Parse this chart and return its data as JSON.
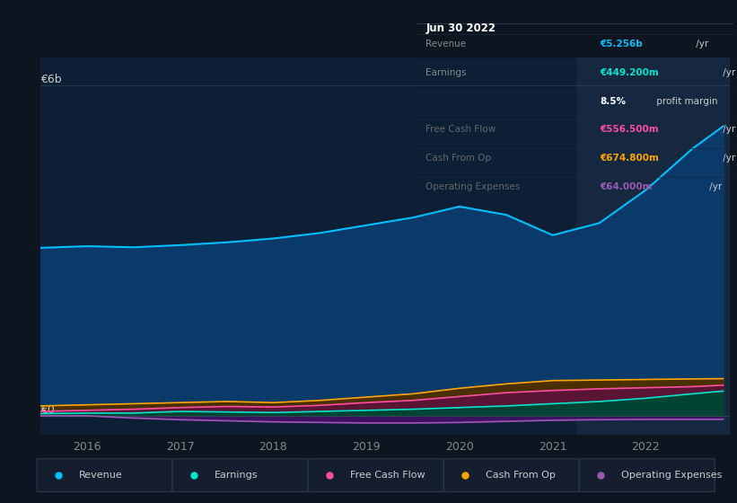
{
  "bg_color": "#0d1520",
  "plot_bg_color": "#0d1f35",
  "years_x": [
    2015.5,
    2016.0,
    2016.5,
    2017.0,
    2017.5,
    2018.0,
    2018.5,
    2019.0,
    2019.5,
    2020.0,
    2020.5,
    2021.0,
    2021.5,
    2022.0,
    2022.5,
    2022.83
  ],
  "revenue": [
    3.05,
    3.08,
    3.06,
    3.1,
    3.15,
    3.22,
    3.32,
    3.46,
    3.6,
    3.8,
    3.65,
    3.28,
    3.5,
    4.1,
    4.85,
    5.256
  ],
  "earnings": [
    0.04,
    0.05,
    0.05,
    0.08,
    0.07,
    0.06,
    0.08,
    0.1,
    0.12,
    0.15,
    0.18,
    0.22,
    0.26,
    0.32,
    0.4,
    0.449
  ],
  "free_cash_flow": [
    0.08,
    0.1,
    0.12,
    0.15,
    0.17,
    0.16,
    0.19,
    0.24,
    0.28,
    0.35,
    0.42,
    0.46,
    0.49,
    0.51,
    0.53,
    0.5565
  ],
  "cash_from_op": [
    0.18,
    0.2,
    0.22,
    0.24,
    0.26,
    0.24,
    0.28,
    0.34,
    0.4,
    0.5,
    0.58,
    0.64,
    0.65,
    0.66,
    0.67,
    0.6748
  ],
  "operating_expenses": [
    0.0,
    0.0,
    -0.04,
    -0.07,
    -0.09,
    -0.11,
    -0.12,
    -0.13,
    -0.13,
    -0.12,
    -0.1,
    -0.08,
    -0.07,
    -0.065,
    -0.064,
    -0.064
  ],
  "revenue_color": "#00bfff",
  "earnings_color": "#00e5cc",
  "free_cash_flow_color": "#ff4da6",
  "cash_from_op_color": "#ffa500",
  "operating_expenses_color": "#9b59b6",
  "revenue_fill": "#0a3a6a",
  "earnings_fill": "#004433",
  "free_cash_flow_fill": "#5a1535",
  "cash_from_op_fill": "#4a3000",
  "opex_fill": "#3d1060",
  "y_label_6b": "€6b",
  "y_label_0": "€0",
  "xlim": [
    2015.5,
    2022.9
  ],
  "ylim": [
    -0.35,
    6.5
  ],
  "highlight_start": 2021.25,
  "highlight_end": 2022.9,
  "info_box_title": "Jun 30 2022",
  "info_rows": [
    {
      "label": "Revenue",
      "value": "€5.256b",
      "unit": " /yr",
      "val_color": "#00bfff",
      "label_color": "#888888"
    },
    {
      "label": "Earnings",
      "value": "€449.200m",
      "unit": " /yr",
      "val_color": "#00e5cc",
      "label_color": "#888888"
    },
    {
      "label": "",
      "value": "8.5%",
      "unit": " profit margin",
      "val_color": "#ffffff",
      "label_color": "#888888"
    },
    {
      "label": "Free Cash Flow",
      "value": "€556.500m",
      "unit": " /yr",
      "val_color": "#ff4da6",
      "label_color": "#666666"
    },
    {
      "label": "Cash From Op",
      "value": "€674.800m",
      "unit": " /yr",
      "val_color": "#ffa500",
      "label_color": "#666666"
    },
    {
      "label": "Operating Expenses",
      "value": "€64.000m",
      "unit": " /yr",
      "val_color": "#9b59b6",
      "label_color": "#666666"
    }
  ],
  "legend_items": [
    {
      "label": "Revenue",
      "color": "#00bfff"
    },
    {
      "label": "Earnings",
      "color": "#00e5cc"
    },
    {
      "label": "Free Cash Flow",
      "color": "#ff4da6"
    },
    {
      "label": "Cash From Op",
      "color": "#ffa500"
    },
    {
      "label": "Operating Expenses",
      "color": "#9b59b6"
    }
  ]
}
